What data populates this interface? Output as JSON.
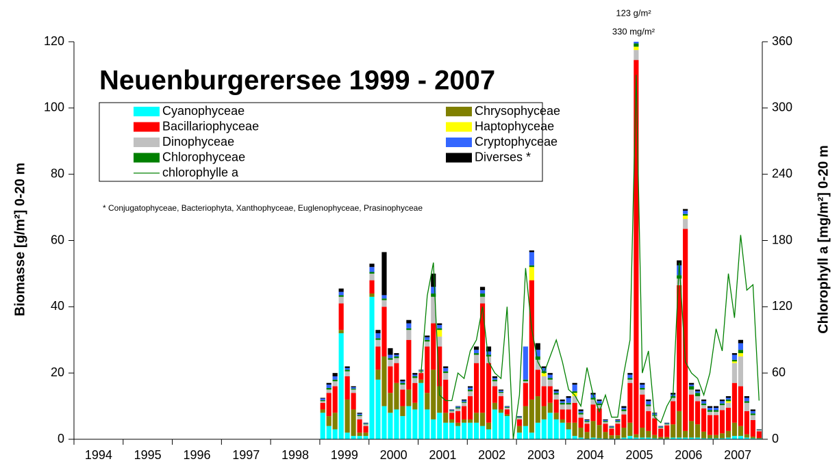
{
  "chart_data": {
    "type": "bar",
    "title": "Neuenburgerersee 1999 - 2007",
    "footnote": "* Conjugatophyceae, Bacteriophyta, Xanthophyceae, Euglenophyceae, Prasinophyceae",
    "y_label": "Biomasse [g/m²]  0-20 m",
    "y2_label": "Chlorophyll a [mg/m²] 0-20 m",
    "annotations": [
      "123 g/m²",
      "330 mg/m²"
    ],
    "stacked": true,
    "xlim": [
      1994,
      2008
    ],
    "xticks": [
      1994,
      1995,
      1996,
      1997,
      1998,
      1999,
      2000,
      2001,
      2002,
      2003,
      2004,
      2005,
      2006,
      2007
    ],
    "ylim": [
      0,
      120
    ],
    "yticks": [
      0,
      20,
      40,
      60,
      80,
      100,
      120
    ],
    "y2lim": [
      0,
      360
    ],
    "y2ticks": [
      0,
      60,
      120,
      180,
      240,
      300,
      360
    ],
    "x": [
      1999.06,
      1999.185,
      1999.31,
      1999.435,
      1999.56,
      1999.685,
      1999.81,
      1999.935,
      2000.06,
      2000.185,
      2000.31,
      2000.435,
      2000.56,
      2000.685,
      2000.81,
      2000.935,
      2001.06,
      2001.185,
      2001.31,
      2001.435,
      2001.56,
      2001.685,
      2001.81,
      2001.935,
      2002.06,
      2002.185,
      2002.31,
      2002.435,
      2002.56,
      2002.685,
      2002.81,
      2002.935,
      2003.06,
      2003.185,
      2003.31,
      2003.435,
      2003.56,
      2003.685,
      2003.81,
      2003.935,
      2004.06,
      2004.185,
      2004.31,
      2004.435,
      2004.56,
      2004.685,
      2004.81,
      2004.935,
      2005.06,
      2005.185,
      2005.31,
      2005.435,
      2005.56,
      2005.685,
      2005.81,
      2005.935,
      2006.06,
      2006.185,
      2006.31,
      2006.435,
      2006.56,
      2006.685,
      2006.81,
      2006.935,
      2007.06,
      2007.185,
      2007.31,
      2007.435,
      2007.56,
      2007.685,
      2007.81,
      2007.935
    ],
    "series": [
      {
        "name": "Cyanophyceae",
        "color": "#00ffff",
        "values": [
          8,
          4,
          3,
          32,
          2,
          1,
          1,
          1,
          43,
          18,
          10,
          8,
          9,
          7,
          10,
          9,
          17,
          9,
          6,
          8,
          5,
          5,
          4,
          5,
          5,
          5,
          4,
          3,
          9,
          8,
          7,
          0,
          2,
          4,
          2,
          5,
          6,
          8,
          6,
          5,
          3,
          1,
          0.5,
          0.2,
          0.5,
          0.3,
          0.2,
          0.2,
          0.2,
          0.5,
          1,
          0.5,
          0.5,
          0.5,
          0.3,
          0.2,
          0.2,
          0.5,
          0.5,
          0.5,
          0.5,
          0.5,
          0.3,
          0.3,
          0.3,
          0.3,
          0.5,
          1,
          1,
          0.5,
          0.3,
          0.2
        ]
      },
      {
        "name": "Chrysophyceae",
        "color": "#808000",
        "values": [
          1,
          3,
          5,
          1,
          10,
          8,
          1,
          1,
          1,
          3,
          15,
          6,
          8,
          3,
          5,
          2,
          1,
          5,
          15,
          8,
          3,
          1,
          1,
          1,
          1,
          3,
          4,
          2,
          2,
          1,
          0.5,
          0,
          2,
          6,
          10,
          8,
          4,
          3,
          2,
          1,
          2,
          4,
          3,
          2,
          5,
          4,
          2,
          1,
          1,
          3,
          4,
          1,
          3,
          2,
          1,
          0.5,
          0.5,
          4,
          8,
          2,
          5,
          4,
          2,
          1,
          1,
          1.5,
          2,
          4,
          3,
          1,
          0.5,
          0.2
        ]
      },
      {
        "name": "Bacillariophyceae",
        "color": "#ff0000",
        "values": [
          2,
          7,
          8,
          8,
          7,
          5,
          4,
          2,
          4,
          7,
          15,
          8,
          6,
          5,
          15,
          6,
          2,
          14,
          14,
          12,
          10,
          2,
          3.5,
          4,
          7,
          15,
          33,
          18,
          5,
          4,
          1.5,
          0,
          2,
          7,
          36,
          8,
          6,
          5,
          4,
          3,
          4,
          6,
          3,
          2.5,
          5,
          5,
          2.5,
          2,
          3.5,
          4,
          12,
          113,
          10,
          6,
          5,
          2.5,
          3.5,
          7,
          38,
          61,
          8,
          7,
          7,
          6,
          6,
          7,
          7,
          12,
          12,
          7,
          5,
          2
        ]
      },
      {
        "name": "Dinophyceae",
        "color": "#c0c0c0",
        "values": [
          0.5,
          1,
          1.5,
          2,
          1.5,
          1,
          1,
          0.5,
          2,
          2,
          2,
          2,
          1.5,
          1.5,
          3,
          1.5,
          0.5,
          1.5,
          8,
          3,
          2,
          0.5,
          0.8,
          1,
          1.5,
          2.5,
          2,
          2,
          1.5,
          1,
          0.5,
          0,
          0.5,
          0.5,
          0,
          3,
          3,
          2,
          1.5,
          1.5,
          1.5,
          2,
          1,
          0.5,
          1.5,
          1,
          0.5,
          0.3,
          0.5,
          1,
          1,
          3,
          1.5,
          1.5,
          0.8,
          0.3,
          0.3,
          1,
          2,
          3,
          1.5,
          1.5,
          1,
          1,
          1,
          1.5,
          1.5,
          6,
          9,
          2.5,
          1.5,
          0.3
        ]
      },
      {
        "name": "Haptophyceae",
        "color": "#ffff00",
        "values": [
          0,
          0,
          0,
          0,
          0,
          0,
          0,
          0,
          0,
          0,
          0,
          0,
          0,
          0,
          0,
          0,
          0,
          0,
          0,
          2,
          0,
          0,
          0,
          0,
          0,
          0,
          0,
          0,
          0,
          0,
          0,
          0,
          0,
          0,
          4,
          0,
          1,
          0,
          0,
          0,
          0,
          1,
          0,
          0,
          0,
          0,
          0,
          0,
          0,
          0,
          0,
          1,
          0,
          0,
          0,
          0,
          0,
          0,
          0,
          1,
          0,
          0,
          0,
          0,
          0,
          0,
          0.5,
          0.5,
          1,
          0,
          0,
          0
        ]
      },
      {
        "name": "Chlorophyceae",
        "color": "#008000",
        "values": [
          0.3,
          0.5,
          0.5,
          0.5,
          0.5,
          0.3,
          0.3,
          0.2,
          0.5,
          0.5,
          0.5,
          0.5,
          0.5,
          0.5,
          0.5,
          0.5,
          0.2,
          0.5,
          1,
          0.5,
          0.5,
          0.2,
          0.3,
          0.3,
          0.5,
          0.5,
          1,
          0.5,
          0.5,
          0.3,
          0.2,
          0,
          0.2,
          0.5,
          0.5,
          1,
          0.5,
          0.5,
          0.5,
          0.5,
          0.5,
          0.5,
          0.5,
          0.3,
          0.5,
          0.5,
          0.3,
          0.2,
          0.3,
          0.5,
          0.5,
          1,
          0.5,
          0.5,
          0.3,
          0.2,
          0.2,
          0.5,
          1,
          0.5,
          1,
          1,
          0.5,
          0.5,
          0.5,
          0.5,
          0.5,
          0.5,
          1,
          0.5,
          0.5,
          0.1
        ]
      },
      {
        "name": "Cryptophyceae",
        "color": "#3366ff",
        "values": [
          0.5,
          1,
          1,
          1,
          0.5,
          0.4,
          0.4,
          0.2,
          1.5,
          1.5,
          1,
          1,
          0.5,
          0.5,
          1.5,
          0.5,
          0.2,
          0.8,
          2,
          1,
          1,
          0.2,
          0.3,
          0.4,
          0.6,
          1,
          1,
          1,
          0.5,
          0.4,
          0.2,
          0,
          0.2,
          10,
          4,
          2,
          1,
          1,
          0.5,
          0.5,
          1.5,
          2,
          0.5,
          0.3,
          1,
          0.8,
          0.3,
          0.2,
          0.3,
          0.5,
          1,
          3,
          1,
          1,
          0.4,
          0.2,
          0.2,
          0.5,
          3,
          1,
          0.5,
          0.5,
          0.7,
          0.7,
          0.7,
          0.7,
          0.5,
          1.5,
          2,
          1,
          0.7,
          0.1
        ]
      },
      {
        "name": "Diverses *",
        "color": "#000000",
        "values": [
          0.2,
          0.5,
          1,
          1,
          0.5,
          0.3,
          0.3,
          0.1,
          1,
          1,
          13,
          2,
          0.5,
          0.5,
          1,
          0.5,
          0.1,
          0.5,
          4,
          0.5,
          0.5,
          0.1,
          0.1,
          0.3,
          0.4,
          1,
          1,
          1.5,
          0.5,
          0.3,
          0.1,
          0,
          0.1,
          0,
          0.5,
          2,
          0.5,
          0.5,
          0.5,
          0.5,
          0.5,
          0.5,
          0.5,
          0.2,
          0.5,
          0.4,
          0.2,
          0.1,
          0.2,
          0.5,
          0.5,
          0.5,
          0.5,
          0.5,
          0.2,
          0.1,
          0.1,
          0.5,
          1.5,
          0.5,
          0.5,
          0.5,
          0.5,
          0.5,
          0.5,
          0.5,
          0.5,
          0.5,
          1,
          0.5,
          0.5,
          0.1
        ]
      },
      {
        "name": "chlorophylle a",
        "color": "#008000",
        "type": "line",
        "axis": "y2",
        "values": [
          null,
          null,
          null,
          null,
          null,
          null,
          null,
          null,
          null,
          null,
          null,
          null,
          null,
          null,
          null,
          null,
          60,
          130,
          160,
          40,
          35,
          35,
          60,
          55,
          80,
          90,
          120,
          70,
          60,
          55,
          120,
          0,
          40,
          155,
          100,
          70,
          60,
          75,
          90,
          70,
          45,
          40,
          30,
          65,
          40,
          25,
          40,
          20,
          20,
          60,
          90,
          330,
          60,
          80,
          20,
          15,
          30,
          40,
          160,
          70,
          60,
          55,
          40,
          60,
          100,
          80,
          150,
          110,
          185,
          135,
          140,
          35
        ]
      }
    ]
  }
}
